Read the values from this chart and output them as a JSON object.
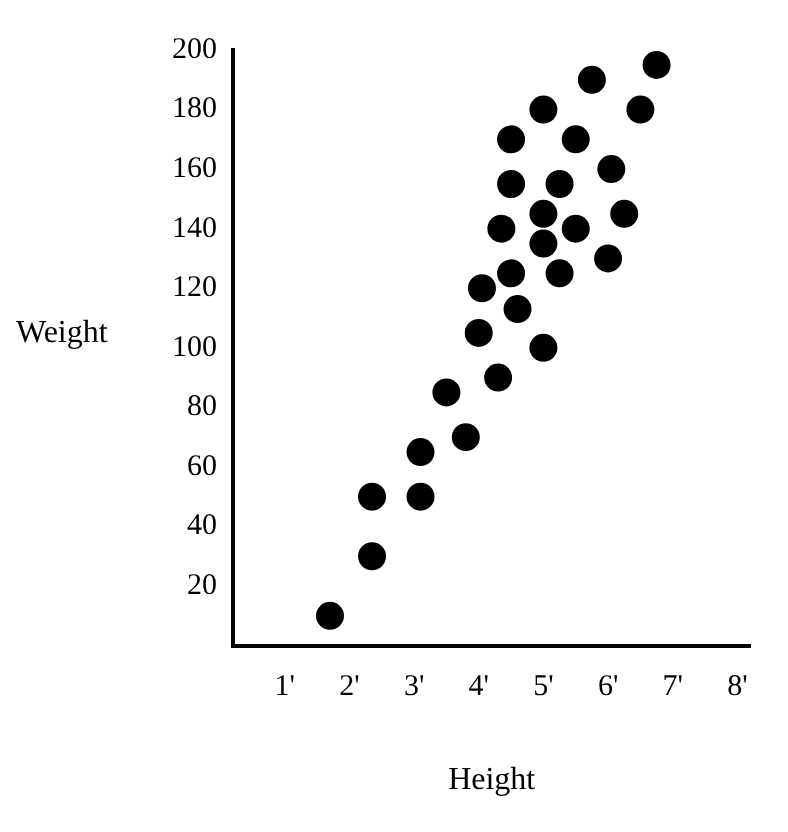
{
  "chart_data": {
    "type": "scatter",
    "xlabel": "Height",
    "ylabel": "Weight",
    "marker": "circle",
    "grid": false,
    "legend": false,
    "xlim": [
      0.2,
      8.2
    ],
    "ylim": [
      0,
      200
    ],
    "xticks": [
      {
        "value": 1,
        "label": "1'"
      },
      {
        "value": 2,
        "label": "2'"
      },
      {
        "value": 3,
        "label": "3'"
      },
      {
        "value": 4,
        "label": "4'"
      },
      {
        "value": 5,
        "label": "5'"
      },
      {
        "value": 6,
        "label": "6'"
      },
      {
        "value": 7,
        "label": "7'"
      },
      {
        "value": 8,
        "label": "8'"
      }
    ],
    "yticks": [
      20,
      40,
      60,
      80,
      100,
      120,
      140,
      160,
      180,
      200
    ],
    "series": [
      {
        "color": "#000000",
        "x": [
          1.7,
          2.35,
          2.35,
          3.1,
          3.1,
          3.8,
          3.5,
          4.3,
          5.0,
          4.0,
          4.05,
          4.6,
          4.5,
          5.25,
          6.0,
          4.35,
          5.0,
          5.0,
          5.5,
          6.25,
          4.5,
          5.25,
          6.05,
          4.5,
          5.5,
          5.0,
          6.5,
          5.75,
          6.75
        ],
        "values": [
          10,
          30,
          50,
          50,
          65,
          70,
          85,
          90,
          100,
          105,
          120,
          113,
          125,
          125,
          130,
          140,
          135,
          145,
          140,
          145,
          155,
          155,
          160,
          170,
          170,
          180,
          180,
          190,
          195
        ]
      }
    ]
  }
}
